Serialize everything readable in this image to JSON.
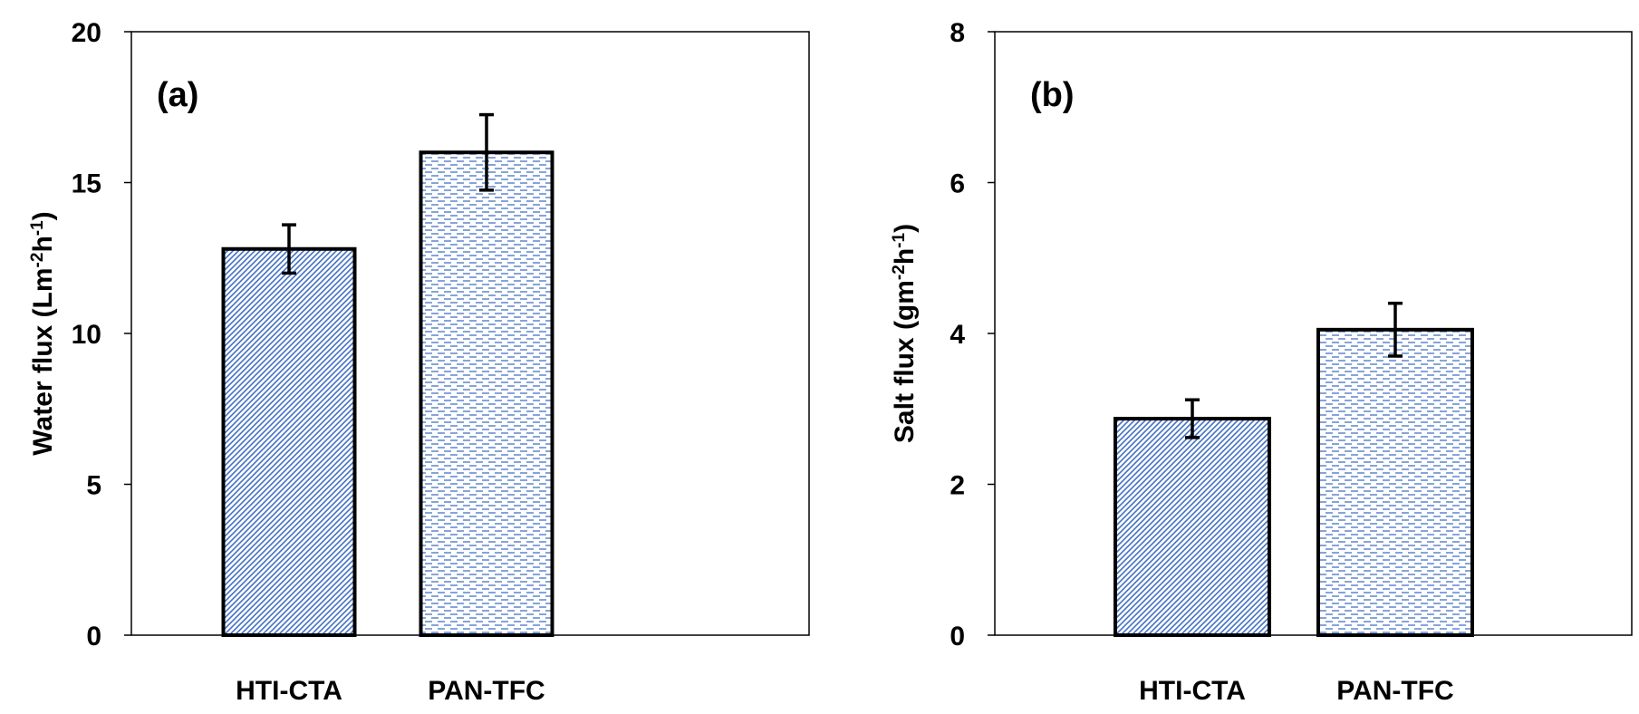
{
  "chart_data": [
    {
      "type": "bar",
      "panel_label": "(a)",
      "categories": [
        "HTI-CTA",
        "PAN-TFC"
      ],
      "values": [
        12.8,
        16.0
      ],
      "errors": [
        0.8,
        1.25
      ],
      "ylabel_main": "Water flux  (Lm",
      "ylabel_sup1": "-2",
      "ylabel_mid": "h",
      "ylabel_sup2": "-1",
      "ylabel_end": ")",
      "ylim": [
        0,
        20
      ],
      "yticks": [
        0,
        5,
        10,
        15,
        20
      ],
      "grid": false,
      "colors": {
        "hatch": "#4472c4",
        "border": "#000000"
      },
      "patterns": [
        "diagonal",
        "dashed-horizontal"
      ]
    },
    {
      "type": "bar",
      "panel_label": "(b)",
      "categories": [
        "HTI-CTA",
        "PAN-TFC"
      ],
      "values": [
        2.87,
        4.05
      ],
      "errors": [
        0.25,
        0.35
      ],
      "ylabel_main": "Salt flux  (gm",
      "ylabel_sup1": "-2",
      "ylabel_mid": "h",
      "ylabel_sup2": "-1",
      "ylabel_end": ")",
      "ylim": [
        0,
        8
      ],
      "yticks": [
        0,
        2,
        4,
        6,
        8
      ],
      "grid": false,
      "colors": {
        "hatch": "#4472c4",
        "border": "#000000"
      },
      "patterns": [
        "diagonal",
        "dashed-horizontal"
      ]
    }
  ]
}
